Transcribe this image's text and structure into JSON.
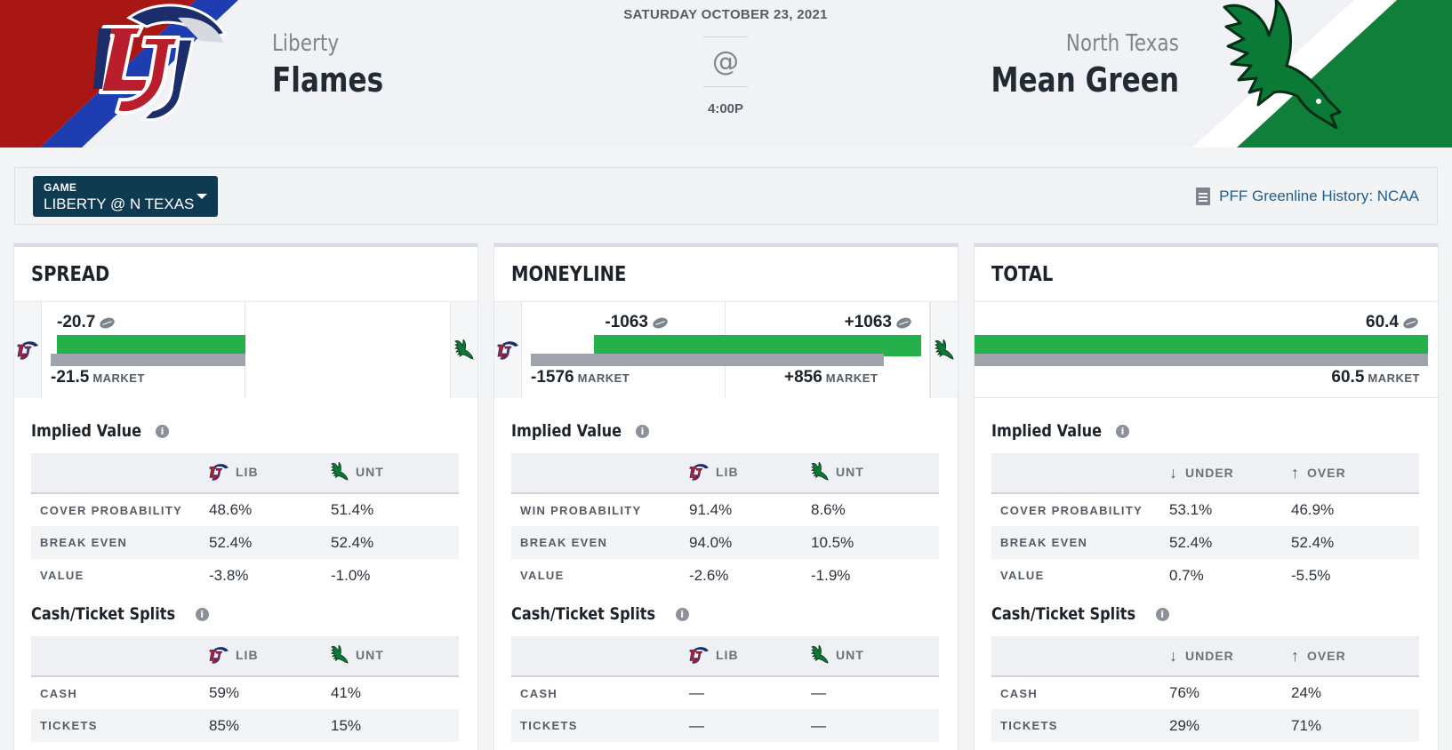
{
  "header": {
    "date": "SATURDAY OCTOBER 23, 2021",
    "at_symbol": "@",
    "time": "4:00P",
    "away": {
      "city": "Liberty",
      "nickname": "Flames",
      "logo": "liberty-flames-logo",
      "abbr": "LIB",
      "colors": {
        "primary": "#a91714",
        "secondary": "#1e3db0"
      }
    },
    "home": {
      "city": "North Texas",
      "nickname": "Mean Green",
      "logo": "north-texas-eagle-logo",
      "abbr": "UNT",
      "colors": {
        "primary": "#0f7f3a"
      }
    }
  },
  "game_bar": {
    "select_label": "GAME",
    "select_value": "LIBERTY @ N TEXAS",
    "history_link": "PFF Greenline History: NCAA",
    "history_icon": "document-icon"
  },
  "cards": {
    "spread": {
      "title": "SPREAD",
      "pff_value": "-20.7",
      "market_value": "-21.5",
      "market_label": "MARKET",
      "implied_title": "Implied Value",
      "implied_headers": [
        "LIB",
        "UNT"
      ],
      "implied_rows": [
        {
          "label": "COVER PROBABILITY",
          "a": "48.6%",
          "b": "51.4%"
        },
        {
          "label": "BREAK EVEN",
          "a": "52.4%",
          "b": "52.4%"
        },
        {
          "label": "VALUE",
          "a": "-3.8%",
          "b": "-1.0%"
        }
      ],
      "splits_title": "Cash/Ticket Splits",
      "splits_headers": [
        "LIB",
        "UNT"
      ],
      "splits_rows": [
        {
          "label": "CASH",
          "a": "59%",
          "b": "41%"
        },
        {
          "label": "TICKETS",
          "a": "85%",
          "b": "15%"
        }
      ]
    },
    "moneyline": {
      "title": "MONEYLINE",
      "away_pff": "-1063",
      "home_pff": "+1063",
      "away_market": "-1576",
      "home_market": "+856",
      "market_label": "MARKET",
      "implied_title": "Implied Value",
      "implied_headers": [
        "LIB",
        "UNT"
      ],
      "implied_rows": [
        {
          "label": "WIN PROBABILITY",
          "a": "91.4%",
          "b": "8.6%"
        },
        {
          "label": "BREAK EVEN",
          "a": "94.0%",
          "b": "10.5%"
        },
        {
          "label": "VALUE",
          "a": "-2.6%",
          "b": "-1.9%"
        }
      ],
      "splits_title": "Cash/Ticket Splits",
      "splits_headers": [
        "LIB",
        "UNT"
      ],
      "splits_rows": [
        {
          "label": "CASH",
          "a": "—",
          "b": "—"
        },
        {
          "label": "TICKETS",
          "a": "—",
          "b": "—"
        }
      ]
    },
    "total": {
      "title": "TOTAL",
      "pff_value": "60.4",
      "market_value": "60.5",
      "market_label": "MARKET",
      "implied_title": "Implied Value",
      "implied_headers": [
        "UNDER",
        "OVER"
      ],
      "implied_rows": [
        {
          "label": "COVER PROBABILITY",
          "a": "53.1%",
          "b": "46.9%"
        },
        {
          "label": "BREAK EVEN",
          "a": "52.4%",
          "b": "52.4%"
        },
        {
          "label": "VALUE",
          "a": "0.7%",
          "b": "-5.5%"
        }
      ],
      "splits_title": "Cash/Ticket Splits",
      "splits_headers": [
        "UNDER",
        "OVER"
      ],
      "splits_rows": [
        {
          "label": "CASH",
          "a": "76%",
          "b": "24%"
        },
        {
          "label": "TICKETS",
          "a": "29%",
          "b": "71%"
        }
      ]
    }
  },
  "colors": {
    "bar_green": "#24b14b",
    "bar_grey": "#9fa3aa",
    "select_bg": "#0e3a52",
    "link": "#1f5f8e"
  }
}
